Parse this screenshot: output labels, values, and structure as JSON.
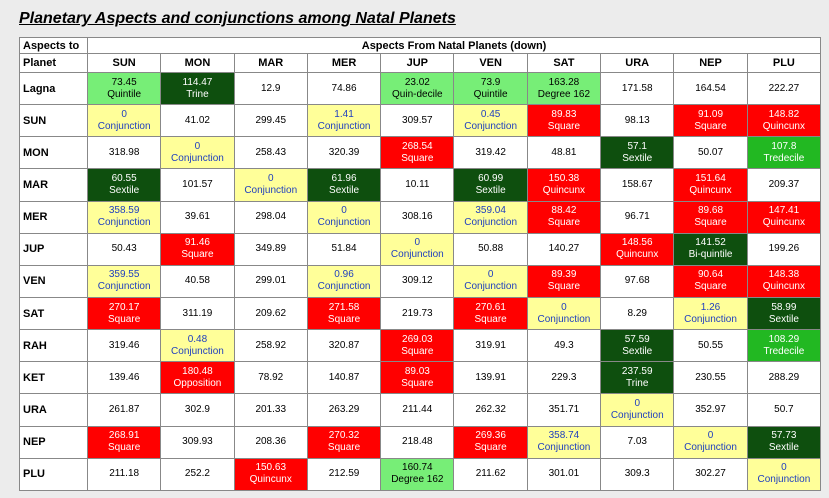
{
  "title": "Planetary Aspects and conjunctions among Natal Planets",
  "corner_top": "Aspects to",
  "corner_bottom": "Planet",
  "span_header": "Aspects From Natal  Planets (down)",
  "columns": [
    "SUN",
    "MON",
    "MAR",
    "MER",
    "JUP",
    "VEN",
    "SAT",
    "URA",
    "NEP",
    "PLU"
  ],
  "colors": {
    "white": "#ffffff",
    "yellow": "#ffff99",
    "red": "#ff0000",
    "green": "#22b822",
    "darkgreen": "#0e4f0e",
    "lightgreen": "#77ee77",
    "blue_text": "#1f3fbf"
  },
  "rows": [
    {
      "planet": "Lagna",
      "cells": [
        {
          "v": "73.45",
          "a": "Quintile",
          "c": "lg"
        },
        {
          "v": "114.47",
          "a": "Trine",
          "c": "dg"
        },
        {
          "v": "12.9",
          "a": "",
          "c": "w"
        },
        {
          "v": "74.86",
          "a": "",
          "c": "w"
        },
        {
          "v": "23.02",
          "a": "Quin-decile",
          "c": "lg"
        },
        {
          "v": "73.9",
          "a": "Quintile",
          "c": "lg"
        },
        {
          "v": "163.28",
          "a": "Degree 162",
          "c": "lg"
        },
        {
          "v": "171.58",
          "a": "",
          "c": "w"
        },
        {
          "v": "164.54",
          "a": "",
          "c": "w"
        },
        {
          "v": "222.27",
          "a": "",
          "c": "w"
        }
      ]
    },
    {
      "planet": "SUN",
      "cells": [
        {
          "v": "0",
          "a": "Conjunction",
          "c": "y"
        },
        {
          "v": "41.02",
          "a": "",
          "c": "w"
        },
        {
          "v": "299.45",
          "a": "",
          "c": "w"
        },
        {
          "v": "1.41",
          "a": "Conjunction",
          "c": "y"
        },
        {
          "v": "309.57",
          "a": "",
          "c": "w"
        },
        {
          "v": "0.45",
          "a": "Conjunction",
          "c": "y"
        },
        {
          "v": "89.83",
          "a": "Square",
          "c": "r"
        },
        {
          "v": "98.13",
          "a": "",
          "c": "w"
        },
        {
          "v": "91.09",
          "a": "Square",
          "c": "r"
        },
        {
          "v": "148.82",
          "a": "Quincunx",
          "c": "r"
        }
      ]
    },
    {
      "planet": "MON",
      "cells": [
        {
          "v": "318.98",
          "a": "",
          "c": "w"
        },
        {
          "v": "0",
          "a": "Conjunction",
          "c": "y"
        },
        {
          "v": "258.43",
          "a": "",
          "c": "w"
        },
        {
          "v": "320.39",
          "a": "",
          "c": "w"
        },
        {
          "v": "268.54",
          "a": "Square",
          "c": "r"
        },
        {
          "v": "319.42",
          "a": "",
          "c": "w"
        },
        {
          "v": "48.81",
          "a": "",
          "c": "w"
        },
        {
          "v": "57.1",
          "a": "Sextile",
          "c": "dg"
        },
        {
          "v": "50.07",
          "a": "",
          "c": "w"
        },
        {
          "v": "107.8",
          "a": "Tredecile",
          "c": "g"
        }
      ]
    },
    {
      "planet": "MAR",
      "cells": [
        {
          "v": "60.55",
          "a": "Sextile",
          "c": "dg"
        },
        {
          "v": "101.57",
          "a": "",
          "c": "w"
        },
        {
          "v": "0",
          "a": "Conjunction",
          "c": "y"
        },
        {
          "v": "61.96",
          "a": "Sextile",
          "c": "dg"
        },
        {
          "v": "10.11",
          "a": "",
          "c": "w"
        },
        {
          "v": "60.99",
          "a": "Sextile",
          "c": "dg"
        },
        {
          "v": "150.38",
          "a": "Quincunx",
          "c": "r"
        },
        {
          "v": "158.67",
          "a": "",
          "c": "w"
        },
        {
          "v": "151.64",
          "a": "Quincunx",
          "c": "r"
        },
        {
          "v": "209.37",
          "a": "",
          "c": "w"
        }
      ]
    },
    {
      "planet": "MER",
      "cells": [
        {
          "v": "358.59",
          "a": "Conjunction",
          "c": "y"
        },
        {
          "v": "39.61",
          "a": "",
          "c": "w"
        },
        {
          "v": "298.04",
          "a": "",
          "c": "w"
        },
        {
          "v": "0",
          "a": "Conjunction",
          "c": "y"
        },
        {
          "v": "308.16",
          "a": "",
          "c": "w"
        },
        {
          "v": "359.04",
          "a": "Conjunction",
          "c": "y"
        },
        {
          "v": "88.42",
          "a": "Square",
          "c": "r"
        },
        {
          "v": "96.71",
          "a": "",
          "c": "w"
        },
        {
          "v": "89.68",
          "a": "Square",
          "c": "r"
        },
        {
          "v": "147.41",
          "a": "Quincunx",
          "c": "r"
        }
      ]
    },
    {
      "planet": "JUP",
      "cells": [
        {
          "v": "50.43",
          "a": "",
          "c": "w"
        },
        {
          "v": "91.46",
          "a": "Square",
          "c": "r"
        },
        {
          "v": "349.89",
          "a": "",
          "c": "w"
        },
        {
          "v": "51.84",
          "a": "",
          "c": "w"
        },
        {
          "v": "0",
          "a": "Conjunction",
          "c": "y"
        },
        {
          "v": "50.88",
          "a": "",
          "c": "w"
        },
        {
          "v": "140.27",
          "a": "",
          "c": "w"
        },
        {
          "v": "148.56",
          "a": "Quincunx",
          "c": "r"
        },
        {
          "v": "141.52",
          "a": "Bi-quintile",
          "c": "dg"
        },
        {
          "v": "199.26",
          "a": "",
          "c": "w"
        }
      ]
    },
    {
      "planet": "VEN",
      "cells": [
        {
          "v": "359.55",
          "a": "Conjunction",
          "c": "y"
        },
        {
          "v": "40.58",
          "a": "",
          "c": "w"
        },
        {
          "v": "299.01",
          "a": "",
          "c": "w"
        },
        {
          "v": "0.96",
          "a": "Conjunction",
          "c": "y"
        },
        {
          "v": "309.12",
          "a": "",
          "c": "w"
        },
        {
          "v": "0",
          "a": "Conjunction",
          "c": "y"
        },
        {
          "v": "89.39",
          "a": "Square",
          "c": "r"
        },
        {
          "v": "97.68",
          "a": "",
          "c": "w"
        },
        {
          "v": "90.64",
          "a": "Square",
          "c": "r"
        },
        {
          "v": "148.38",
          "a": "Quincunx",
          "c": "r"
        }
      ]
    },
    {
      "planet": "SAT",
      "cells": [
        {
          "v": "270.17",
          "a": "Square",
          "c": "r"
        },
        {
          "v": "311.19",
          "a": "",
          "c": "w"
        },
        {
          "v": "209.62",
          "a": "",
          "c": "w"
        },
        {
          "v": "271.58",
          "a": "Square",
          "c": "r"
        },
        {
          "v": "219.73",
          "a": "",
          "c": "w"
        },
        {
          "v": "270.61",
          "a": "Square",
          "c": "r"
        },
        {
          "v": "0",
          "a": "Conjunction",
          "c": "y"
        },
        {
          "v": "8.29",
          "a": "",
          "c": "w"
        },
        {
          "v": "1.26",
          "a": "Conjunction",
          "c": "y"
        },
        {
          "v": "58.99",
          "a": "Sextile",
          "c": "dg"
        }
      ]
    },
    {
      "planet": "RAH",
      "cells": [
        {
          "v": "319.46",
          "a": "",
          "c": "w"
        },
        {
          "v": "0.48",
          "a": "Conjunction",
          "c": "y"
        },
        {
          "v": "258.92",
          "a": "",
          "c": "w"
        },
        {
          "v": "320.87",
          "a": "",
          "c": "w"
        },
        {
          "v": "269.03",
          "a": "Square",
          "c": "r"
        },
        {
          "v": "319.91",
          "a": "",
          "c": "w"
        },
        {
          "v": "49.3",
          "a": "",
          "c": "w"
        },
        {
          "v": "57.59",
          "a": "Sextile",
          "c": "dg"
        },
        {
          "v": "50.55",
          "a": "",
          "c": "w"
        },
        {
          "v": "108.29",
          "a": "Tredecile",
          "c": "g"
        }
      ]
    },
    {
      "planet": "KET",
      "cells": [
        {
          "v": "139.46",
          "a": "",
          "c": "w"
        },
        {
          "v": "180.48",
          "a": "Opposition",
          "c": "r"
        },
        {
          "v": "78.92",
          "a": "",
          "c": "w"
        },
        {
          "v": "140.87",
          "a": "",
          "c": "w"
        },
        {
          "v": "89.03",
          "a": "Square",
          "c": "r"
        },
        {
          "v": "139.91",
          "a": "",
          "c": "w"
        },
        {
          "v": "229.3",
          "a": "",
          "c": "w"
        },
        {
          "v": "237.59",
          "a": "Trine",
          "c": "dg"
        },
        {
          "v": "230.55",
          "a": "",
          "c": "w"
        },
        {
          "v": "288.29",
          "a": "",
          "c": "w"
        }
      ]
    },
    {
      "planet": "URA",
      "cells": [
        {
          "v": "261.87",
          "a": "",
          "c": "w"
        },
        {
          "v": "302.9",
          "a": "",
          "c": "w"
        },
        {
          "v": "201.33",
          "a": "",
          "c": "w"
        },
        {
          "v": "263.29",
          "a": "",
          "c": "w"
        },
        {
          "v": "211.44",
          "a": "",
          "c": "w"
        },
        {
          "v": "262.32",
          "a": "",
          "c": "w"
        },
        {
          "v": "351.71",
          "a": "",
          "c": "w"
        },
        {
          "v": "0",
          "a": "Conjunction",
          "c": "y"
        },
        {
          "v": "352.97",
          "a": "",
          "c": "w"
        },
        {
          "v": "50.7",
          "a": "",
          "c": "w"
        }
      ]
    },
    {
      "planet": "NEP",
      "cells": [
        {
          "v": "268.91",
          "a": "Square",
          "c": "r"
        },
        {
          "v": "309.93",
          "a": "",
          "c": "w"
        },
        {
          "v": "208.36",
          "a": "",
          "c": "w"
        },
        {
          "v": "270.32",
          "a": "Square",
          "c": "r"
        },
        {
          "v": "218.48",
          "a": "",
          "c": "w"
        },
        {
          "v": "269.36",
          "a": "Square",
          "c": "r"
        },
        {
          "v": "358.74",
          "a": "Conjunction",
          "c": "y"
        },
        {
          "v": "7.03",
          "a": "",
          "c": "w"
        },
        {
          "v": "0",
          "a": "Conjunction",
          "c": "y"
        },
        {
          "v": "57.73",
          "a": "Sextile",
          "c": "dg"
        }
      ]
    },
    {
      "planet": "PLU",
      "cells": [
        {
          "v": "211.18",
          "a": "",
          "c": "w"
        },
        {
          "v": "252.2",
          "a": "",
          "c": "w"
        },
        {
          "v": "150.63",
          "a": "Quincunx",
          "c": "r"
        },
        {
          "v": "212.59",
          "a": "",
          "c": "w"
        },
        {
          "v": "160.74",
          "a": "Degree 162",
          "c": "lg"
        },
        {
          "v": "211.62",
          "a": "",
          "c": "w"
        },
        {
          "v": "301.01",
          "a": "",
          "c": "w"
        },
        {
          "v": "309.3",
          "a": "",
          "c": "w"
        },
        {
          "v": "302.27",
          "a": "",
          "c": "w"
        },
        {
          "v": "0",
          "a": "Conjunction",
          "c": "y"
        }
      ]
    }
  ]
}
